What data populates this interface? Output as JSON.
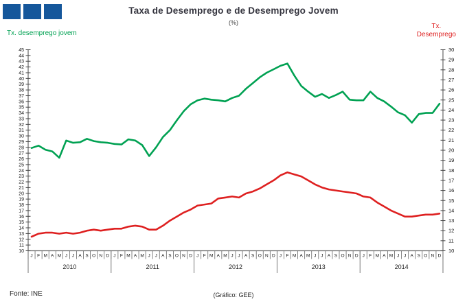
{
  "header": {
    "title": "Taxa de Desemprego e de Desemprego Jovem",
    "subtitle": "(%)"
  },
  "labels": {
    "left_series": "Tx. desemprego jovem",
    "right_series_line1": "Tx.",
    "right_series_line2": "Desemprego"
  },
  "footer": {
    "source": "Fonte: INE",
    "credit": "(Gráfico: GEE)"
  },
  "colors": {
    "youth_line": "#00A152",
    "unemployment_line": "#DE2020",
    "logo_blue": "#15579B",
    "axis": "#666666",
    "tick_label": "#111111"
  },
  "chart_data": {
    "type": "line",
    "title": "Taxa de Desemprego e de Desemprego Jovem",
    "subtitle": "(%)",
    "month_letters": [
      "J",
      "F",
      "M",
      "A",
      "M",
      "J",
      "J",
      "A",
      "S",
      "O",
      "N",
      "D"
    ],
    "years": [
      "2010",
      "2011",
      "2012",
      "2013",
      "2014"
    ],
    "left_axis": {
      "label": "Tx. desemprego jovem",
      "min": 10,
      "max": 45,
      "step": 1
    },
    "right_axis": {
      "label": "Tx. Desemprego",
      "min": 10,
      "max": 30,
      "step": 1
    },
    "grid": false,
    "series": [
      {
        "name": "Tx. desemprego jovem",
        "axis": "left",
        "color": "#00A152",
        "values": [
          27.9,
          28.3,
          27.6,
          27.3,
          26.2,
          29.2,
          28.8,
          28.9,
          29.5,
          29.1,
          28.9,
          28.8,
          28.6,
          28.5,
          29.4,
          29.2,
          28.4,
          26.5,
          28.0,
          29.8,
          31.0,
          32.7,
          34.3,
          35.5,
          36.2,
          36.5,
          36.3,
          36.2,
          36.0,
          36.6,
          37.0,
          38.2,
          39.2,
          40.2,
          41.0,
          41.6,
          42.2,
          42.6,
          40.5,
          38.7,
          37.7,
          36.8,
          37.3,
          36.6,
          37.1,
          37.7,
          36.3,
          36.2,
          36.2,
          37.7,
          36.6,
          36.0,
          35.1,
          34.1,
          33.6,
          32.3,
          33.8,
          34.0,
          34.0,
          35.6
        ]
      },
      {
        "name": "Tx. Desemprego",
        "axis": "right",
        "color": "#DE2020",
        "values": [
          11.4,
          11.7,
          11.8,
          11.8,
          11.7,
          11.8,
          11.7,
          11.8,
          12.0,
          12.1,
          12.0,
          12.1,
          12.2,
          12.2,
          12.4,
          12.5,
          12.4,
          12.1,
          12.1,
          12.5,
          13.0,
          13.4,
          13.8,
          14.1,
          14.5,
          14.6,
          14.7,
          15.2,
          15.3,
          15.4,
          15.3,
          15.7,
          15.9,
          16.2,
          16.6,
          17.0,
          17.5,
          17.8,
          17.6,
          17.4,
          17.0,
          16.6,
          16.3,
          16.1,
          16.0,
          15.9,
          15.8,
          15.7,
          15.4,
          15.3,
          14.8,
          14.4,
          14.0,
          13.7,
          13.4,
          13.4,
          13.5,
          13.6,
          13.6,
          13.7
        ]
      }
    ]
  }
}
